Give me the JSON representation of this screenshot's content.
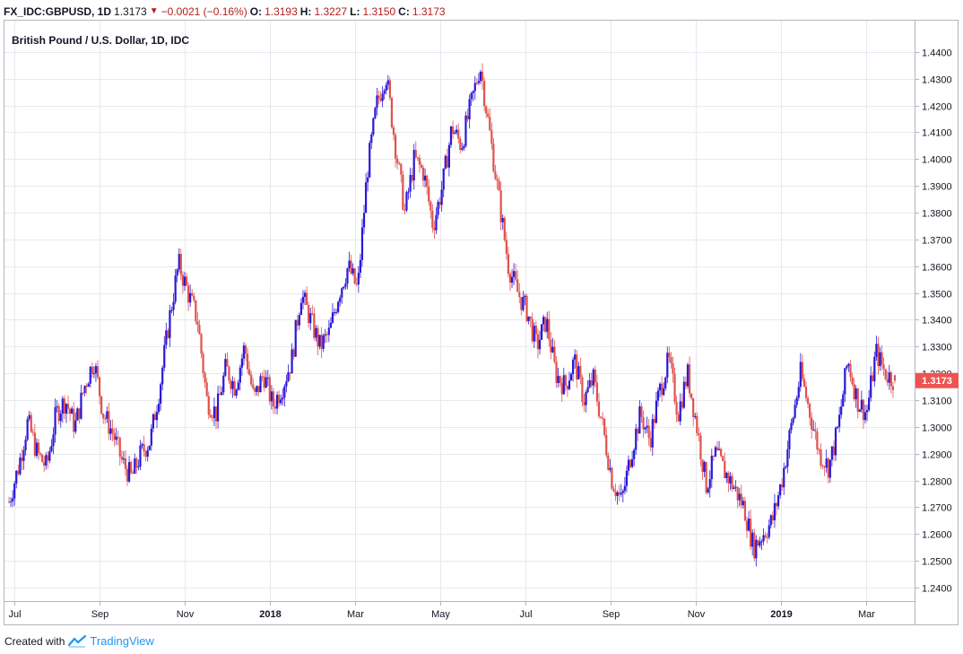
{
  "header": {
    "symbol": "FX_IDC:GBPUSD, 1D",
    "last": "1.3173",
    "change": "−0.0021 (−0.16%)",
    "o_label": "O:",
    "o_value": "1.3193",
    "h_label": "H:",
    "h_value": "1.3227",
    "l_label": "L:",
    "l_value": "1.3150",
    "c_label": "C:",
    "c_value": "1.3173",
    "arrow_icon": "down-triangle-icon"
  },
  "footer": {
    "created_with": "Created with",
    "brand": "TradingView",
    "logo_icon": "tradingview-logo-icon"
  },
  "colors": {
    "up": "#2a17d6",
    "down": "#e0524e",
    "grid": "#e6e9ef",
    "axis": "#b2b5be",
    "price_tag": "#ef5350"
  },
  "chart_data": {
    "type": "candlestick",
    "title": "British Pound / U.S. Dollar, 1D, IDC",
    "ylim": [
      1.235,
      1.452
    ],
    "y_ticks": [
      "1.4400",
      "1.4300",
      "1.4200",
      "1.4100",
      "1.4000",
      "1.3900",
      "1.3800",
      "1.3700",
      "1.3600",
      "1.3500",
      "1.3400",
      "1.3300",
      "1.3200",
      "1.3100",
      "1.3000",
      "1.2900",
      "1.2800",
      "1.2700",
      "1.2600",
      "1.2500",
      "1.2400"
    ],
    "x_ticks": [
      {
        "label": "Jul",
        "bold": false
      },
      {
        "label": "Sep",
        "bold": false
      },
      {
        "label": "Nov",
        "bold": false
      },
      {
        "label": "2018",
        "bold": true
      },
      {
        "label": "Mar",
        "bold": false
      },
      {
        "label": "May",
        "bold": false
      },
      {
        "label": "Jul",
        "bold": false
      },
      {
        "label": "Sep",
        "bold": false
      },
      {
        "label": "Nov",
        "bold": false
      },
      {
        "label": "2019",
        "bold": true
      },
      {
        "label": "Mar",
        "bold": false
      }
    ],
    "last_price_label": "1.3173",
    "grid": true,
    "close_path": [
      1.272,
      1.285,
      1.302,
      1.29,
      1.285,
      1.305,
      1.31,
      1.3,
      1.315,
      1.325,
      1.305,
      1.298,
      1.287,
      1.281,
      1.29,
      1.295,
      1.315,
      1.34,
      1.361,
      1.35,
      1.34,
      1.31,
      1.305,
      1.322,
      1.315,
      1.33,
      1.31,
      1.32,
      1.308,
      1.315,
      1.325,
      1.35,
      1.34,
      1.33,
      1.335,
      1.35,
      1.36,
      1.351,
      1.395,
      1.42,
      1.432,
      1.405,
      1.38,
      1.4,
      1.395,
      1.375,
      1.39,
      1.412,
      1.405,
      1.42,
      1.435,
      1.41,
      1.385,
      1.36,
      1.35,
      1.343,
      1.33,
      1.34,
      1.32,
      1.315,
      1.325,
      1.31,
      1.318,
      1.3,
      1.28,
      1.272,
      1.29,
      1.305,
      1.295,
      1.313,
      1.325,
      1.305,
      1.32,
      1.3,
      1.278,
      1.29,
      1.283,
      1.277,
      1.27,
      1.255,
      1.26,
      1.265,
      1.28,
      1.3,
      1.32,
      1.305,
      1.29,
      1.285,
      1.3,
      1.325,
      1.31,
      1.305,
      1.328,
      1.32,
      1.3173
    ],
    "candles": 480,
    "seed": 7
  }
}
